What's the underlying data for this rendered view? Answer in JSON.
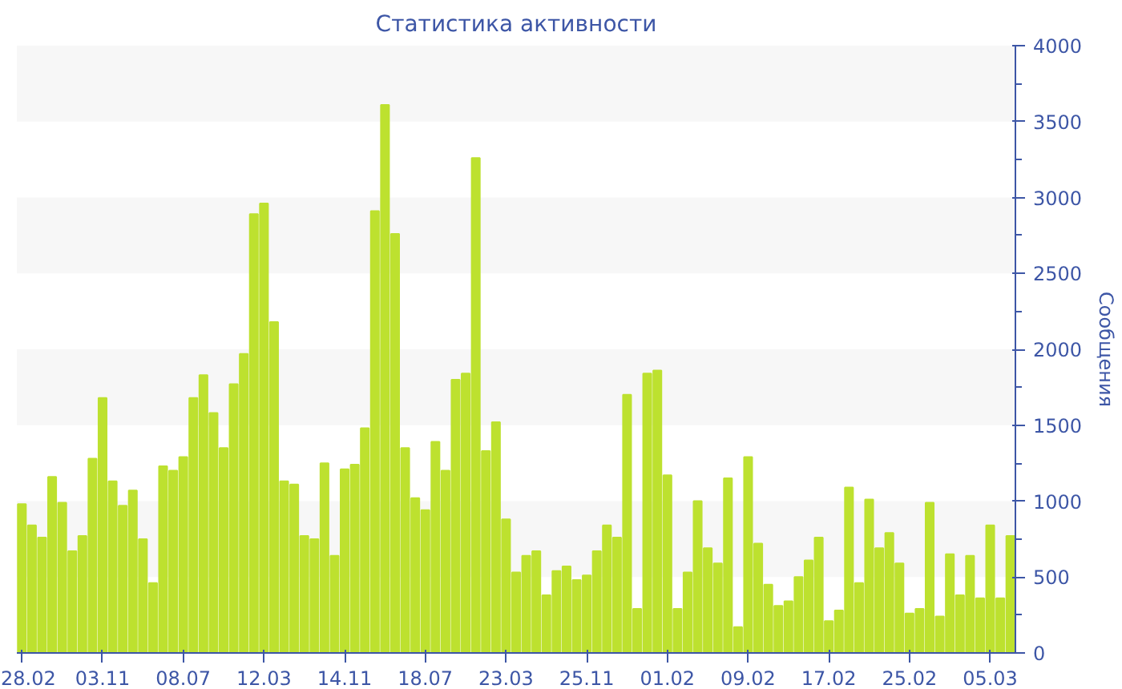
{
  "chart_data": {
    "type": "bar",
    "title": "Статистика активности",
    "ylabel": "Сообщения",
    "categories": [
      "28.02",
      null,
      null,
      null,
      null,
      null,
      null,
      null,
      "03.11",
      null,
      null,
      null,
      null,
      null,
      null,
      null,
      "08.07",
      null,
      null,
      null,
      null,
      null,
      null,
      null,
      "12.03",
      null,
      null,
      null,
      null,
      null,
      null,
      null,
      "14.11",
      null,
      null,
      null,
      null,
      null,
      null,
      null,
      "18.07",
      null,
      null,
      null,
      null,
      null,
      null,
      null,
      "23.03",
      null,
      null,
      null,
      null,
      null,
      null,
      null,
      "25.11",
      null,
      null,
      null,
      null,
      null,
      null,
      null,
      "01.02",
      null,
      null,
      null,
      null,
      null,
      null,
      null,
      "09.02",
      null,
      null,
      null,
      null,
      null,
      null,
      null,
      "17.02",
      null,
      null,
      null,
      null,
      null,
      null,
      null,
      "25.02",
      null,
      null,
      null,
      null,
      null,
      null,
      null,
      "05.03",
      null,
      null
    ],
    "values": [
      980,
      840,
      760,
      1160,
      990,
      670,
      770,
      1280,
      1680,
      1130,
      970,
      1070,
      750,
      460,
      1230,
      1200,
      1290,
      1680,
      1830,
      1580,
      1350,
      1770,
      1970,
      2890,
      2960,
      2180,
      1130,
      1110,
      770,
      750,
      1250,
      640,
      1210,
      1240,
      1480,
      2910,
      3610,
      2760,
      1350,
      1020,
      940,
      1390,
      1200,
      1800,
      1840,
      3260,
      1330,
      1520,
      880,
      530,
      640,
      670,
      380,
      540,
      570,
      480,
      510,
      670,
      840,
      760,
      1700,
      290,
      1840,
      1860,
      1170,
      290,
      530,
      1000,
      690,
      590,
      1150,
      170,
      1290,
      720,
      450,
      310,
      340,
      500,
      610,
      760,
      210,
      280,
      1090,
      460,
      1010,
      690,
      790,
      590,
      260,
      290,
      990,
      240,
      650,
      380,
      640,
      360,
      840,
      360,
      770
    ],
    "color": "#bde12f",
    "ylim": [
      0,
      4000
    ],
    "yticks": [
      0,
      500,
      1000,
      1500,
      2000,
      2500,
      3000,
      3500,
      4000
    ]
  }
}
